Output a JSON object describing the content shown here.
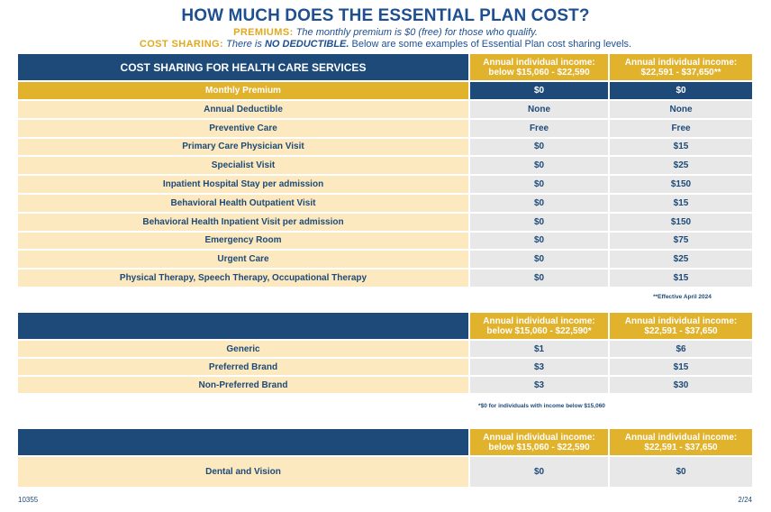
{
  "title": "HOW MUCH DOES THE ESSENTIAL PLAN COST?",
  "premiums": {
    "label": "PREMIUMS:",
    "text": "The monthly premium is $0 (free) for those who qualify."
  },
  "cost_sharing_intro": {
    "label": "COST SHARING:",
    "lead": "There is",
    "emph": "NO DEDUCTIBLE.",
    "rest": "Below are some examples of Essential Plan cost sharing levels."
  },
  "table1": {
    "header": "COST SHARING FOR HEALTH CARE SERVICES",
    "col1": "Annual individual income: below $15,060 - $22,590",
    "col2": "Annual individual income: $22,591 - $37,650**",
    "premium": {
      "label": "Monthly Premium",
      "a": "$0",
      "b": "$0"
    },
    "rows": [
      {
        "label": "Annual Deductible",
        "a": "None",
        "b": "None"
      },
      {
        "label": "Preventive Care",
        "a": "Free",
        "b": "Free"
      },
      {
        "label": "Primary Care Physician Visit",
        "a": "$0",
        "b": "$15"
      },
      {
        "label": "Specialist Visit",
        "a": "$0",
        "b": "$25"
      },
      {
        "label": "Inpatient Hospital Stay per admission",
        "a": "$0",
        "b": "$150"
      },
      {
        "label": "Behavioral Health Outpatient Visit",
        "a": "$0",
        "b": "$15"
      },
      {
        "label": "Behavioral Health Inpatient Visit per admission",
        "a": "$0",
        "b": "$150"
      },
      {
        "label": "Emergency Room",
        "a": "$0",
        "b": "$75"
      },
      {
        "label": "Urgent Care",
        "a": "$0",
        "b": "$25"
      },
      {
        "label": "Physical Therapy, Speech Therapy, Occupational Therapy",
        "a": "$0",
        "b": "$15"
      }
    ],
    "note": "**Effective April 2024"
  },
  "table2": {
    "header": "",
    "col1": "Annual individual income: below $15,060 - $22,590*",
    "col2": "Annual individual income: $22,591 - $37,650",
    "rows": [
      {
        "label": "Generic",
        "a": "$1",
        "b": "$6"
      },
      {
        "label": "Preferred Brand",
        "a": "$3",
        "b": "$15"
      },
      {
        "label": "Non-Preferred Brand",
        "a": "$3",
        "b": "$30"
      }
    ],
    "note": "*$0 for individuals with income below $15,060"
  },
  "table3": {
    "header": "",
    "col1": "Annual individual income: below $15,060 - $22,590",
    "col2": "Annual individual income: $22,591 - $37,650",
    "rows": [
      {
        "label": "Dental and Vision",
        "a": "$0",
        "b": "$0"
      }
    ]
  },
  "footer": {
    "left": "10355",
    "right": "2/24"
  },
  "colors": {
    "navy": "#1d4a78",
    "gold": "#e1b22c",
    "cream": "#fde9bf",
    "gray": "#e8e8e8"
  }
}
